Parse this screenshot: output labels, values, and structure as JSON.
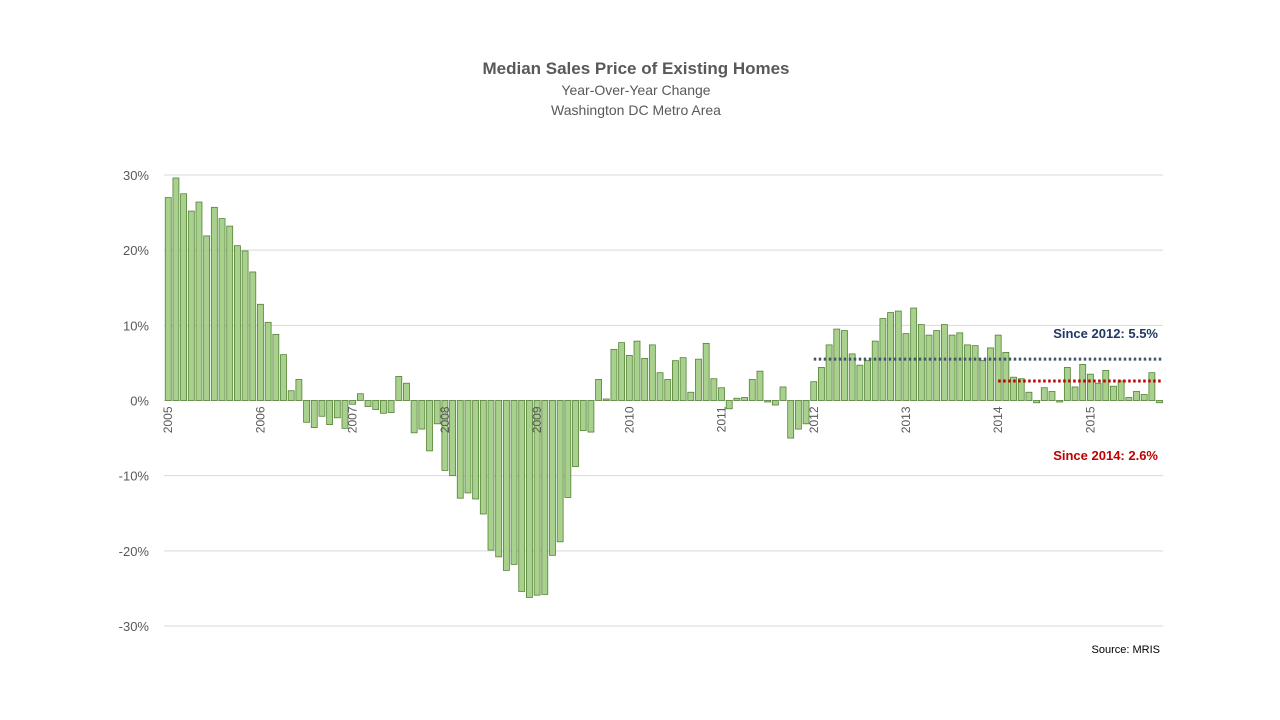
{
  "chart_data": {
    "type": "bar",
    "title": "Median Sales Price of Existing Homes",
    "subtitle": "Year-Over-Year Change",
    "subtitle2": "Washington DC Metro Area",
    "source": "Source: MRIS",
    "ylim": [
      -30,
      30
    ],
    "yticks": [
      30,
      20,
      10,
      0,
      -10,
      -20,
      -30
    ],
    "ytick_labels": [
      "30%",
      "20%",
      "10%",
      "0%",
      "-10%",
      "-20%",
      "-30%"
    ],
    "year_labels": [
      "2005",
      "2006",
      "2007",
      "2008",
      "2009",
      "2010",
      "2011",
      "2012",
      "2013",
      "2014",
      "2015"
    ],
    "x_start": "2005-01",
    "grid": true,
    "bar_color": "#a9d18e",
    "bar_edge_color": "#548235",
    "values": [
      27.0,
      29.6,
      27.5,
      25.2,
      26.4,
      21.9,
      25.7,
      24.2,
      23.2,
      20.6,
      19.9,
      17.1,
      12.8,
      10.4,
      8.8,
      6.1,
      1.3,
      2.8,
      -2.9,
      -3.6,
      -2.1,
      -3.2,
      -2.3,
      -3.7,
      -0.5,
      0.9,
      -0.8,
      -1.2,
      -1.7,
      -1.6,
      3.2,
      2.3,
      -4.3,
      -3.8,
      -6.7,
      -3.1,
      -9.3,
      -10.0,
      -13.0,
      -12.3,
      -13.1,
      -15.1,
      -19.9,
      -20.8,
      -22.6,
      -21.8,
      -25.4,
      -26.2,
      -25.9,
      -25.8,
      -20.6,
      -18.8,
      -12.9,
      -8.8,
      -4.0,
      -4.2,
      2.8,
      0.2,
      6.8,
      7.7,
      6.0,
      7.9,
      5.6,
      7.4,
      3.7,
      2.8,
      5.3,
      5.7,
      1.1,
      5.5,
      7.6,
      2.9,
      1.7,
      -1.1,
      0.3,
      0.4,
      2.8,
      3.9,
      -0.2,
      -0.6,
      1.8,
      -5.0,
      -3.8,
      -3.1,
      2.5,
      4.4,
      7.4,
      9.5,
      9.3,
      6.2,
      4.7,
      5.3,
      7.9,
      10.9,
      11.7,
      11.9,
      8.9,
      12.3,
      10.1,
      8.7,
      9.3,
      10.1,
      8.7,
      9.0,
      7.4,
      7.3,
      5.3,
      7.0,
      8.7,
      6.4,
      3.1,
      2.9,
      1.1,
      -0.3,
      1.7,
      1.2,
      -0.2,
      4.4,
      1.8,
      4.8,
      3.5,
      2.3,
      4.0,
      1.9,
      2.6,
      0.4,
      1.2,
      0.8,
      3.7,
      -0.3
    ],
    "annotations": [
      {
        "label": "Since 2012: 5.5%",
        "value": 5.5,
        "from": "2012-01",
        "color": "#1f3864",
        "line_color": "#44546a"
      },
      {
        "label": "Since 2014: 2.6%",
        "value": 2.6,
        "from": "2014-01",
        "color": "#c00000",
        "line_color": "#c00000"
      }
    ]
  }
}
